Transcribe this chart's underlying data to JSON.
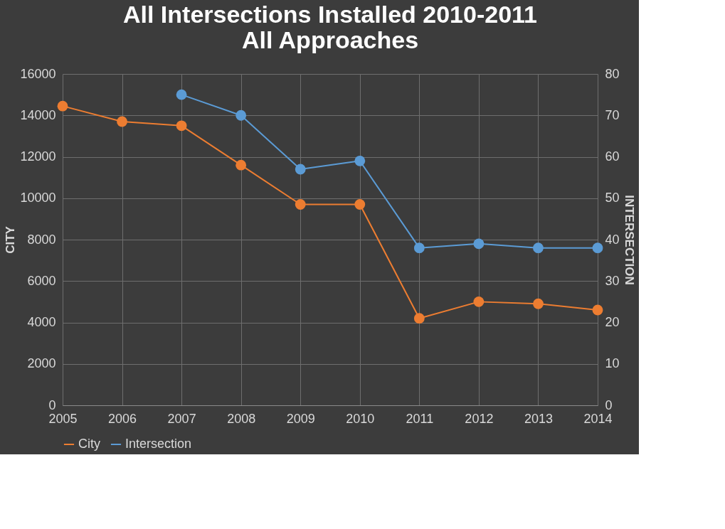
{
  "chart_data": {
    "type": "line",
    "title": [
      "All Intersections Installed 2010-2011",
      "All Approaches"
    ],
    "categories": [
      "2005",
      "2006",
      "2007",
      "2008",
      "2009",
      "2010",
      "2011",
      "2012",
      "2013",
      "2014"
    ],
    "series": [
      {
        "name": "City",
        "color": "#ed7d31",
        "values": [
          14450,
          13700,
          13500,
          11600,
          9700,
          9700,
          4200,
          5000,
          4900,
          4600
        ]
      },
      {
        "name": "Intersection",
        "color": "#5b9bd5",
        "axis": "y2",
        "values": [
          null,
          null,
          75,
          70,
          57,
          59,
          38,
          39,
          38,
          38
        ]
      }
    ],
    "ylabel": "CITY",
    "y2label": "INTERSECTION",
    "ylim": [
      0,
      16000
    ],
    "yticks": [
      0,
      2000,
      4000,
      6000,
      8000,
      10000,
      12000,
      14000,
      16000
    ],
    "y2lim": [
      0,
      80
    ],
    "y2ticks": [
      0,
      10,
      20,
      30,
      40,
      50,
      60,
      70,
      80
    ],
    "grid": true,
    "legend": "bottom",
    "marker": "circle",
    "line_style": "solid"
  }
}
